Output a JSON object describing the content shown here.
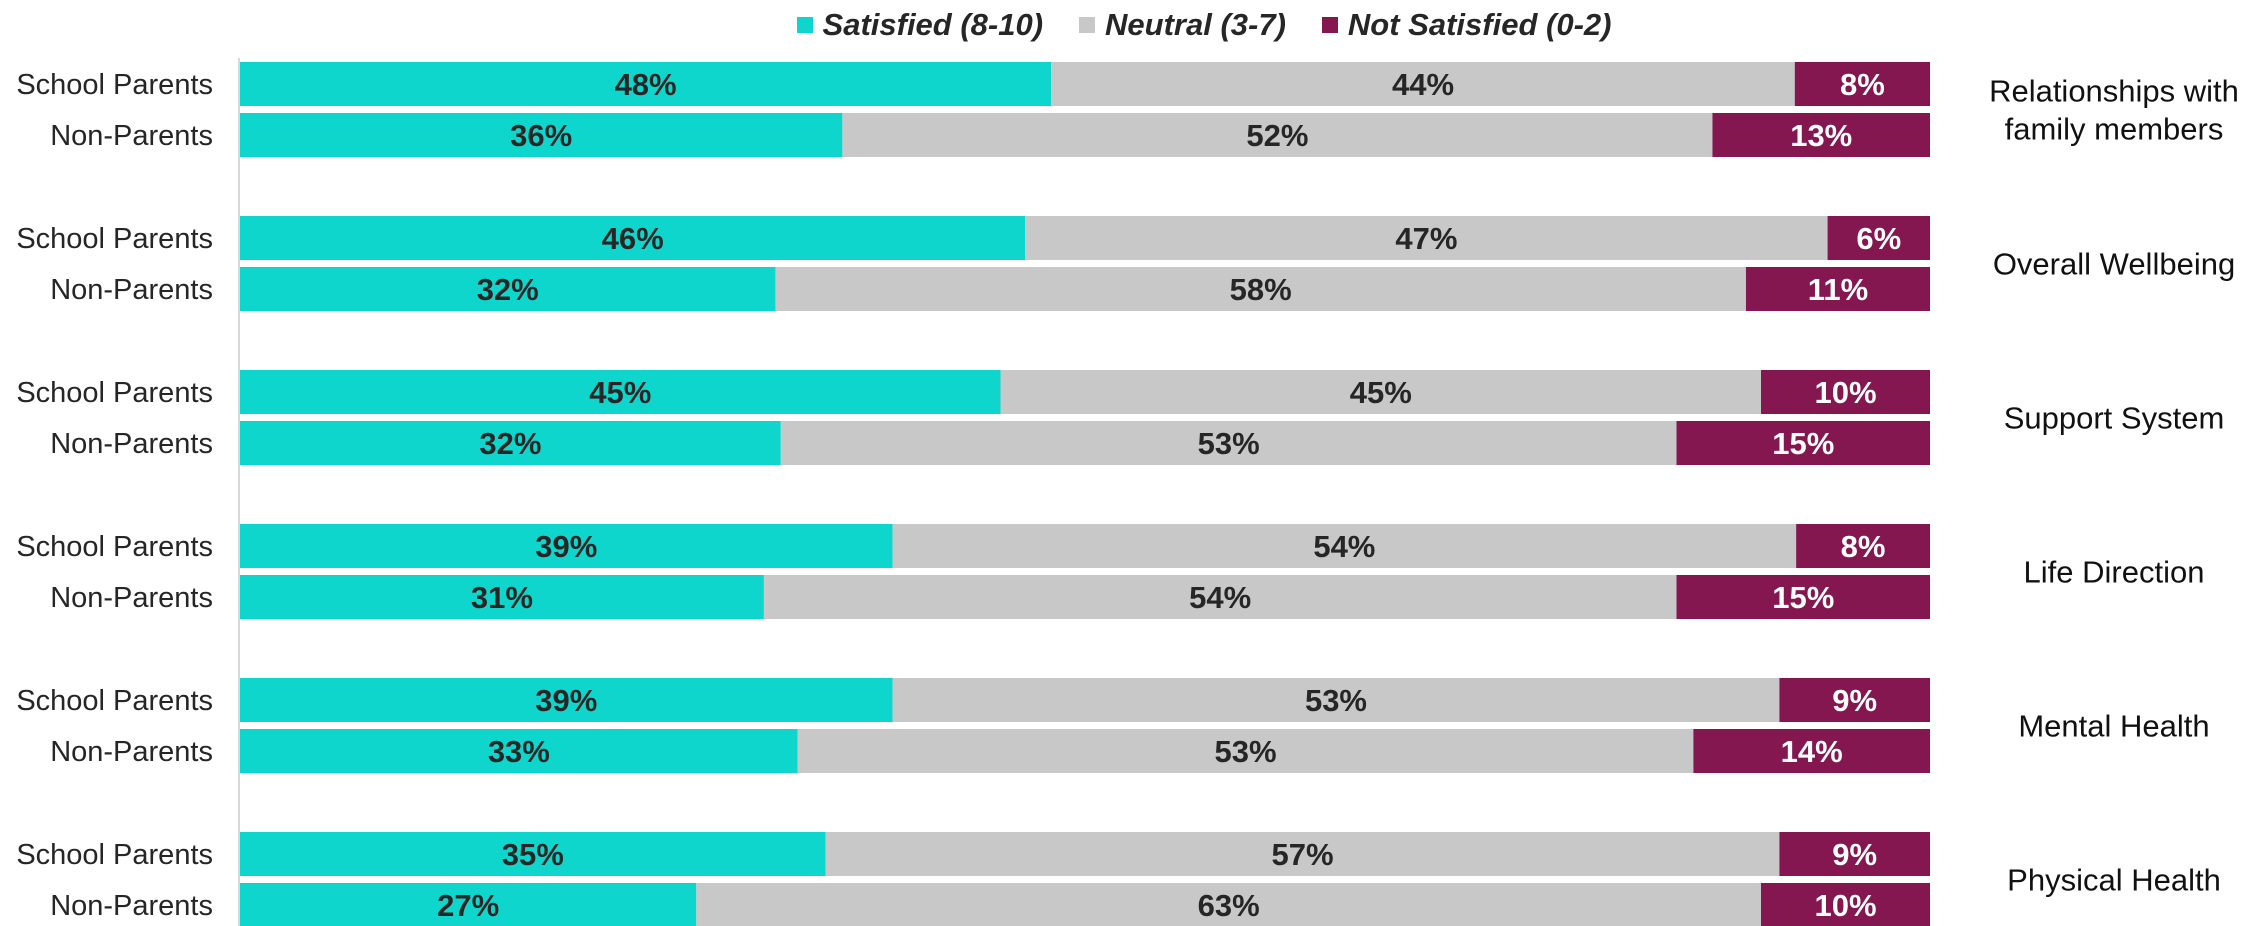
{
  "chart_data": {
    "type": "bar",
    "orientation": "horizontal",
    "stacked": true,
    "percent": true,
    "legend": {
      "placement": "top-center"
    },
    "series": [
      {
        "name": "Satisfied (8-10)",
        "color": "#0fd6cc",
        "label_color": "#262626"
      },
      {
        "name": "Neutral (3-7)",
        "color": "#c8c8c8",
        "label_color": "#262626"
      },
      {
        "name": "Not Satisfied (0-2)",
        "color": "#84174f",
        "label_color": "#ffffff"
      }
    ],
    "groups": [
      {
        "category": "Relationships with family members",
        "category_lines": [
          "Relationships with",
          "family members"
        ],
        "bars": [
          {
            "label": "School Parents",
            "values": [
              48,
              44,
              8
            ]
          },
          {
            "label": "Non-Parents",
            "values": [
              36,
              52,
              13
            ]
          }
        ]
      },
      {
        "category": "Overall Wellbeing",
        "category_lines": [
          "Overall Wellbeing"
        ],
        "bars": [
          {
            "label": "School Parents",
            "values": [
              46,
              47,
              6
            ]
          },
          {
            "label": "Non-Parents",
            "values": [
              32,
              58,
              11
            ]
          }
        ]
      },
      {
        "category": "Support System",
        "category_lines": [
          "Support System"
        ],
        "bars": [
          {
            "label": "School Parents",
            "values": [
              45,
              45,
              10
            ]
          },
          {
            "label": "Non-Parents",
            "values": [
              32,
              53,
              15
            ]
          }
        ]
      },
      {
        "category": "Life Direction",
        "category_lines": [
          "Life Direction"
        ],
        "bars": [
          {
            "label": "School Parents",
            "values": [
              39,
              54,
              8
            ]
          },
          {
            "label": "Non-Parents",
            "values": [
              31,
              54,
              15
            ]
          }
        ]
      },
      {
        "category": "Mental Health",
        "category_lines": [
          "Mental Health"
        ],
        "bars": [
          {
            "label": "School Parents",
            "values": [
              39,
              53,
              9
            ]
          },
          {
            "label": "Non-Parents",
            "values": [
              33,
              53,
              14
            ]
          }
        ]
      },
      {
        "category": "Physical Health",
        "category_lines": [
          "Physical Health"
        ],
        "bars": [
          {
            "label": "School Parents",
            "values": [
              35,
              57,
              9
            ]
          },
          {
            "label": "Non-Parents",
            "values": [
              27,
              63,
              10
            ]
          }
        ]
      }
    ]
  }
}
